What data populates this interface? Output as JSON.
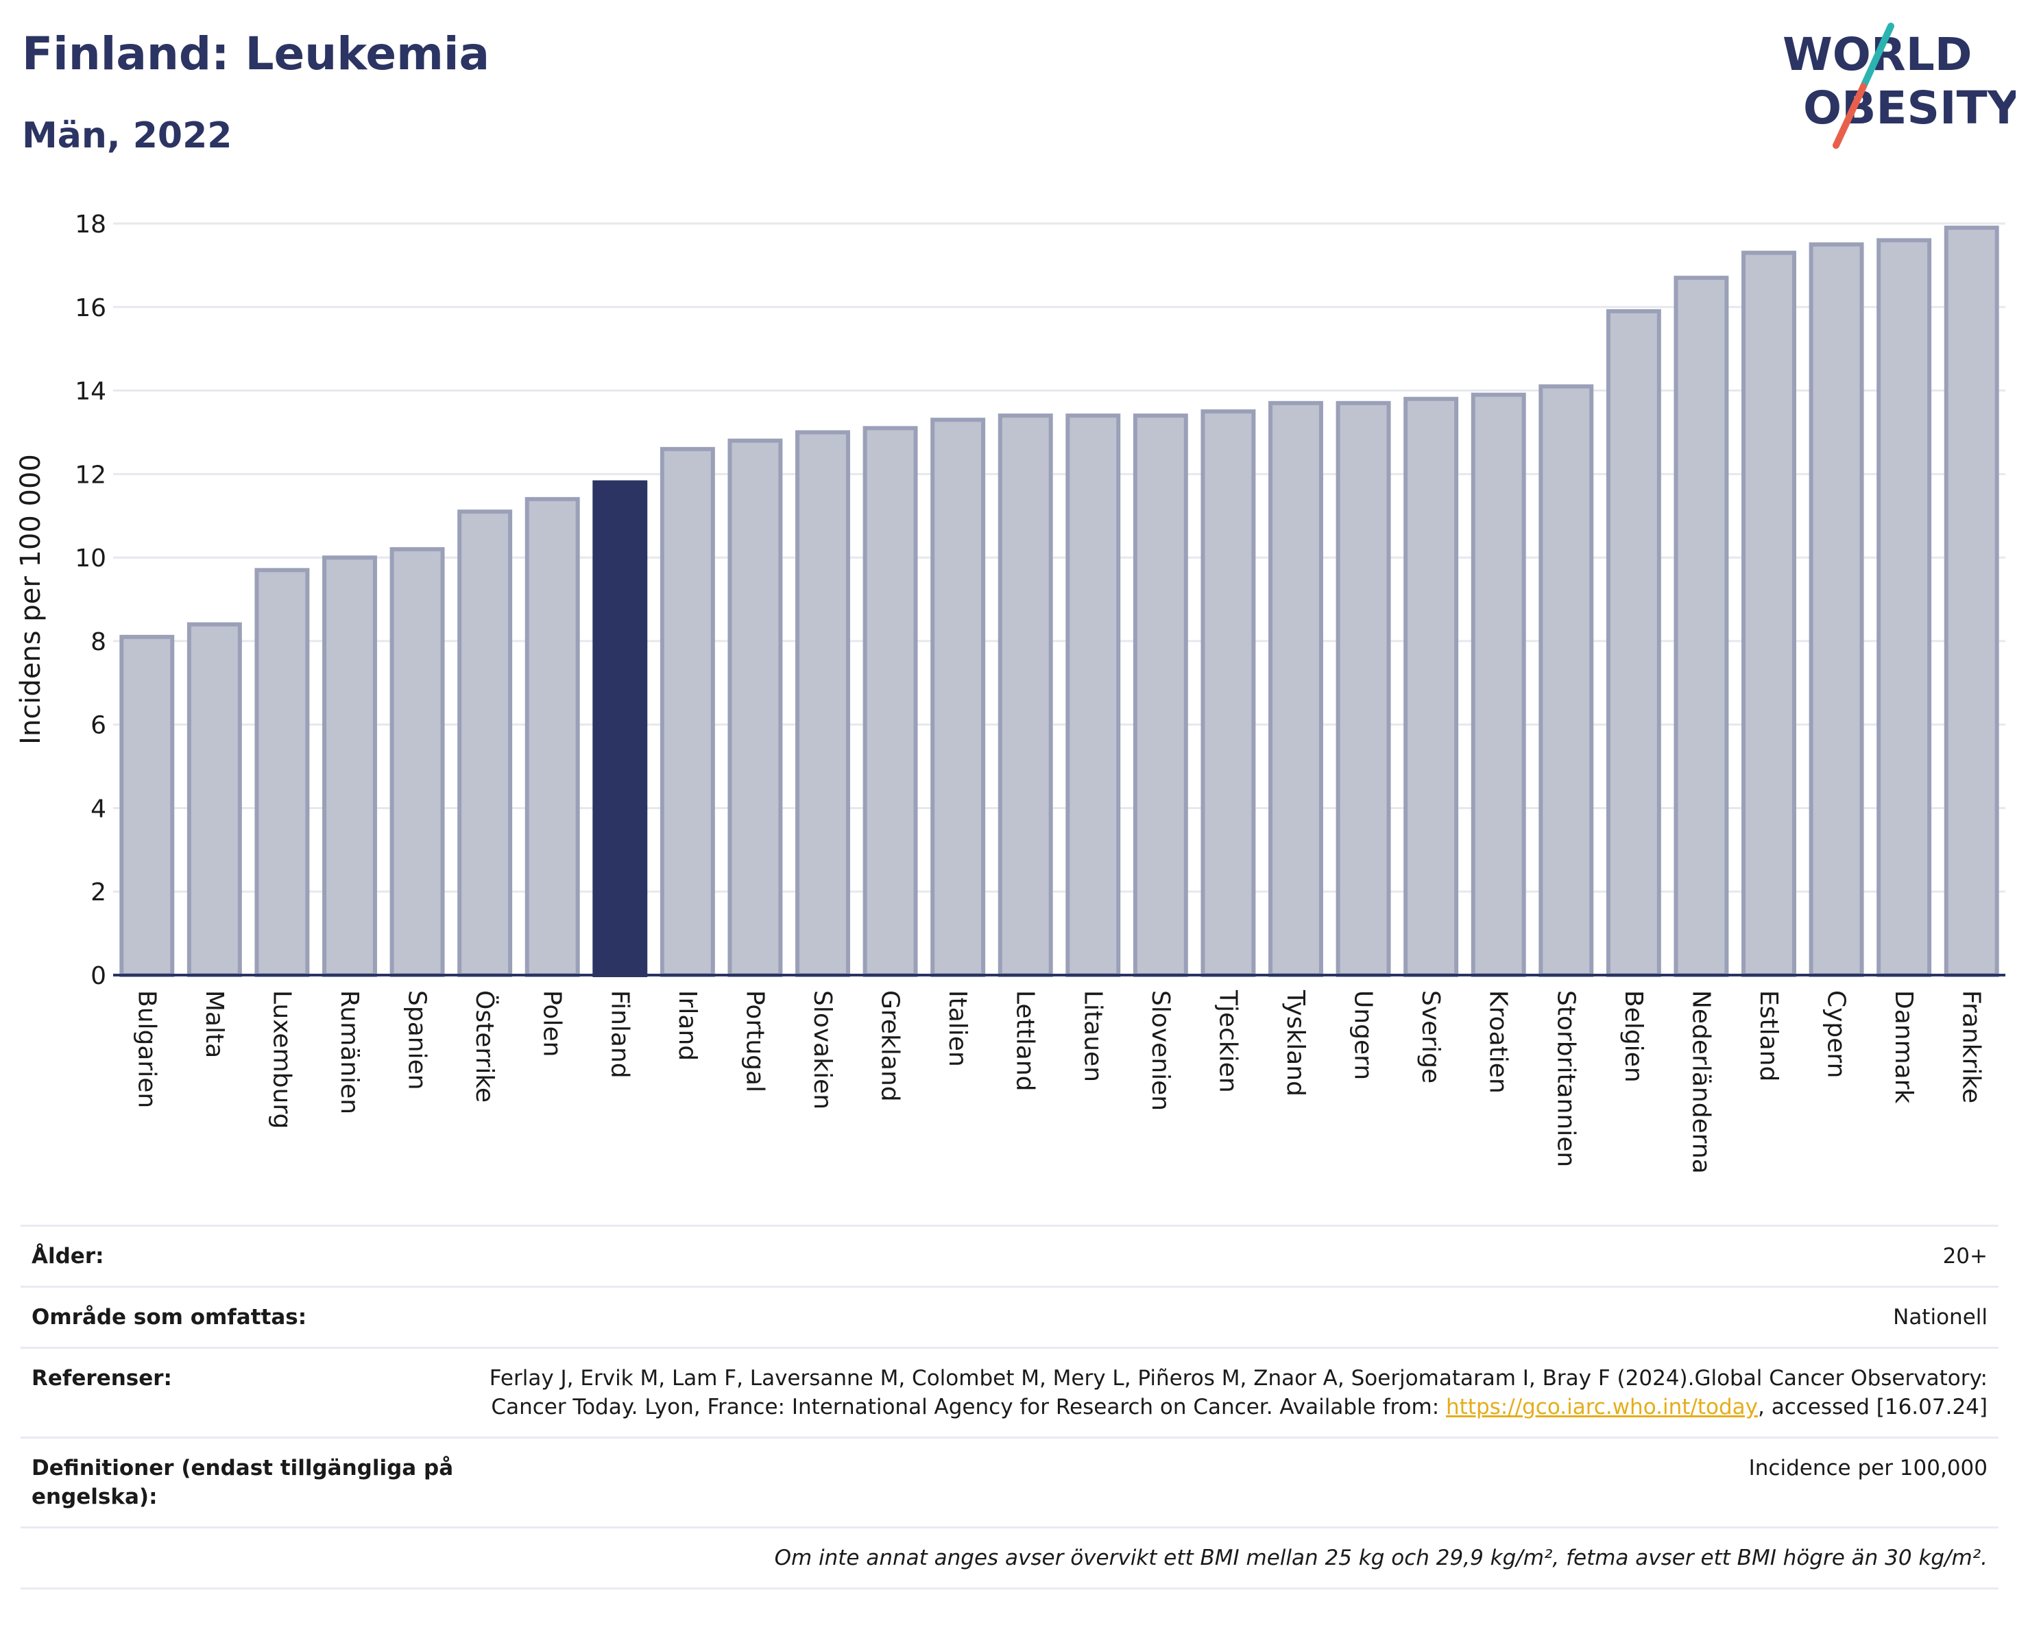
{
  "header": {
    "title": "Finland: Leukemia",
    "subtitle": "Män, 2022"
  },
  "logo": {
    "line1": "WORLD",
    "line2": "OBESITY",
    "text_color": "#2b3462",
    "slash_color_top": "#2bb3b1",
    "slash_color_bottom": "#e8604c"
  },
  "chart_data": {
    "type": "bar",
    "title": "Finland: Leukemia",
    "subtitle": "Män, 2022",
    "xlabel": "",
    "ylabel": "Incidens per 100 000",
    "ylim": [
      0,
      18
    ],
    "yticks": [
      0,
      2,
      4,
      6,
      8,
      10,
      12,
      14,
      16,
      18
    ],
    "grid": true,
    "highlight": "Finland",
    "highlight_color": "#2b3462",
    "bar_color": "#bfc2cf",
    "bar_border_color": "#9aa0b8",
    "categories": [
      "Bulgarien",
      "Malta",
      "Luxemburg",
      "Rumänien",
      "Spanien",
      "Österrike",
      "Polen",
      "Finland",
      "Irland",
      "Portugal",
      "Slovakien",
      "Grekland",
      "Italien",
      "Lettland",
      "Litauen",
      "Slovenien",
      "Tjeckien",
      "Tyskland",
      "Ungern",
      "Sverige",
      "Kroatien",
      "Storbritannien",
      "Belgien",
      "Nederländerna",
      "Estland",
      "Cypern",
      "Danmark",
      "Frankrike"
    ],
    "values": [
      8.1,
      8.4,
      9.7,
      10.0,
      10.2,
      11.1,
      11.4,
      11.8,
      12.6,
      12.8,
      13.0,
      13.1,
      13.3,
      13.4,
      13.4,
      13.4,
      13.5,
      13.7,
      13.7,
      13.8,
      13.9,
      14.1,
      15.9,
      16.7,
      17.3,
      17.5,
      17.6,
      17.9
    ]
  },
  "info": {
    "age_label": "Ålder:",
    "age_value": "20+",
    "area_label": "Område som omfattas:",
    "area_value": "Nationell",
    "refs_label": "Referenser:",
    "refs_text": "Ferlay J, Ervik M, Lam F, Laversanne M, Colombet M, Mery L, Piñeros M, Znaor A, Soerjomataram I, Bray F (2024).Global Cancer Observatory: Cancer Today. Lyon, France: International Agency for Research on Cancer. Available from: ",
    "refs_link": "https://gco.iarc.who.int/today",
    "refs_suffix": ", accessed [16.07.24]",
    "defs_label": "Definitioner (endast tillgängliga på engelska):",
    "defs_value": "Incidence per 100,000",
    "note": "Om inte annat anges avser övervikt ett BMI mellan 25 kg och 29,9 kg/m², fetma avser ett BMI högre än 30 kg/m²."
  }
}
